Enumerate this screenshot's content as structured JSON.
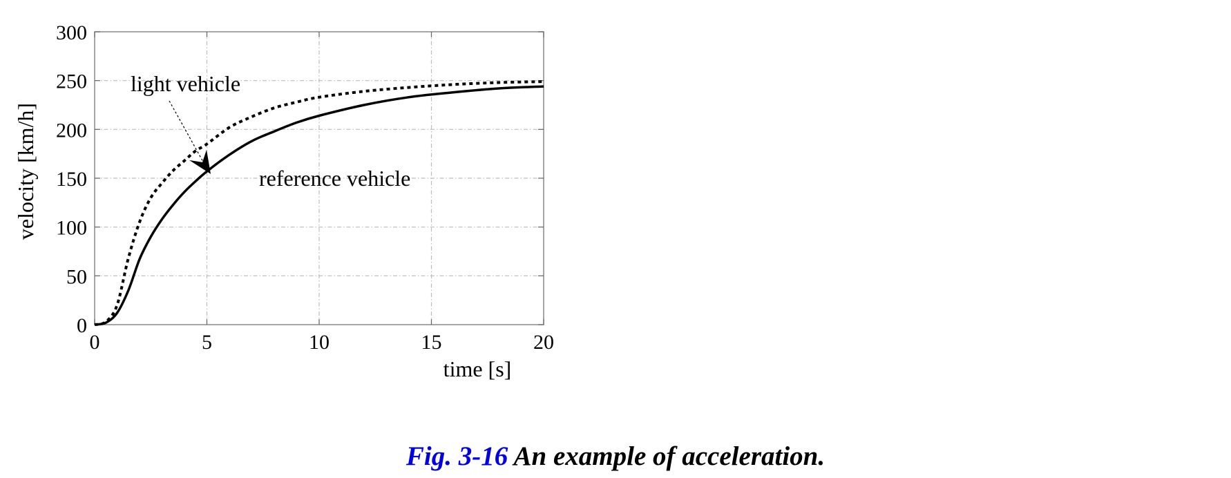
{
  "chart_data": {
    "type": "line",
    "title": "",
    "xlabel": "time [s]",
    "ylabel": "velocity [km/h]",
    "xlim": [
      0,
      20
    ],
    "ylim": [
      0,
      300
    ],
    "xticks": [
      0,
      5,
      10,
      15,
      20
    ],
    "yticks": [
      0,
      50,
      100,
      150,
      200,
      250,
      300
    ],
    "xtick_labels": [
      "0",
      "5",
      "10",
      "15",
      "20"
    ],
    "ytick_labels": [
      "0",
      "50",
      "100",
      "150",
      "200",
      "250",
      "300"
    ],
    "grid": true,
    "legend": "none",
    "series": [
      {
        "name": "light vehicle",
        "style": "dotted",
        "color": "#000000",
        "x": [
          0,
          0.5,
          1,
          1.5,
          2,
          2.5,
          3,
          3.5,
          4,
          4.5,
          5,
          6,
          7,
          8,
          9,
          10,
          12,
          14,
          16,
          18,
          20
        ],
        "y": [
          0,
          3,
          20,
          68,
          105,
          130,
          145,
          158,
          168,
          178,
          185,
          202,
          213,
          222,
          228,
          233,
          239,
          243,
          246,
          248,
          249
        ]
      },
      {
        "name": "reference vehicle",
        "style": "solid",
        "color": "#000000",
        "x": [
          0,
          0.5,
          1,
          1.5,
          2,
          2.5,
          3,
          3.5,
          4,
          4.5,
          5,
          6,
          7,
          8,
          9,
          10,
          12,
          14,
          16,
          18,
          20
        ],
        "y": [
          0,
          2,
          12,
          35,
          67,
          90,
          108,
          123,
          136,
          147,
          157,
          174,
          188,
          198,
          207,
          214,
          225,
          233,
          238,
          242,
          244
        ]
      }
    ],
    "annotations": [
      {
        "text": "light vehicle",
        "target_series": 0,
        "arrow_to": [
          4.8,
          172
        ]
      },
      {
        "text": "reference vehicle",
        "target_series": 1
      }
    ]
  },
  "caption": {
    "number": "Fig. 3-16",
    "text": "An example of acceleration."
  }
}
